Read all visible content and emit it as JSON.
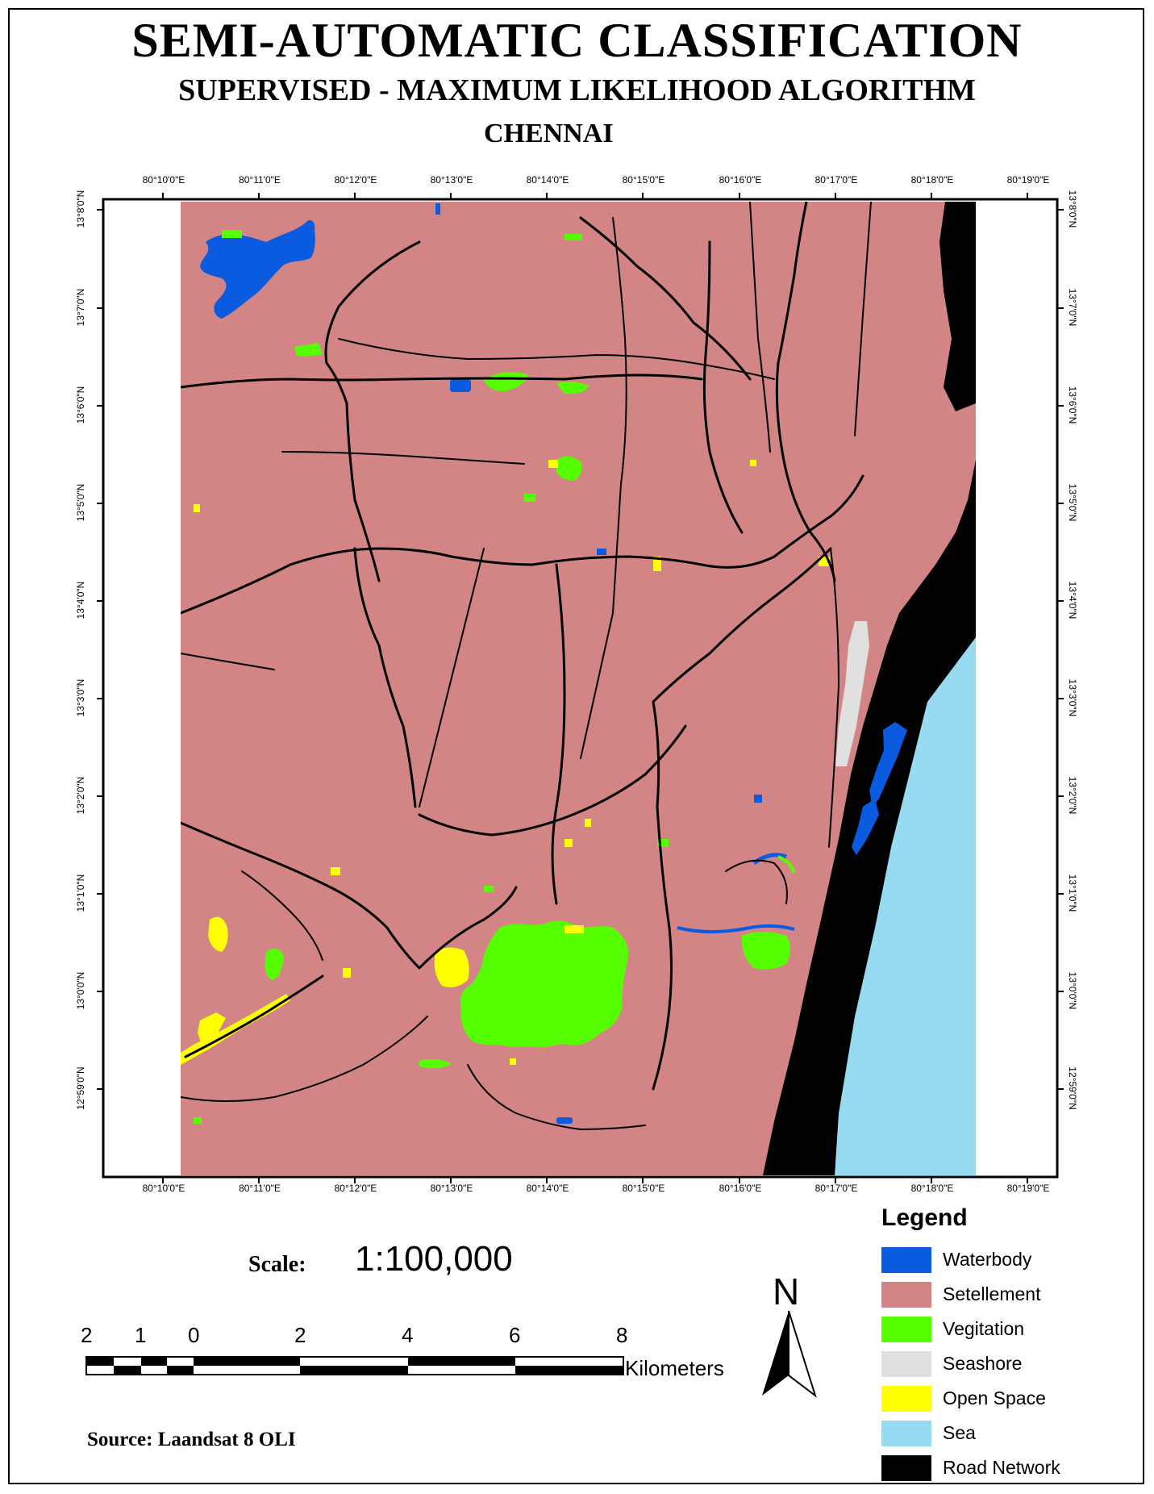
{
  "title": "SEMI-AUTOMATIC CLASSIFICATION",
  "subtitle": "SUPERVISED - MAXIMUM LIKELIHOOD ALGORITHM",
  "place": "CHENNAI",
  "x_ticks": [
    "80°10'0\"E",
    "80°11'0\"E",
    "80°12'0\"E",
    "80°13'0\"E",
    "80°14'0\"E",
    "80°15'0\"E",
    "80°16'0\"E",
    "80°17'0\"E",
    "80°18'0\"E",
    "80°19'0\"E"
  ],
  "y_ticks": [
    "13°8'0\"N",
    "13°7'0\"N",
    "13°6'0\"N",
    "13°5'0\"N",
    "13°4'0\"N",
    "13°3'0\"N",
    "13°2'0\"N",
    "13°1'0\"N",
    "13°0'0\"N",
    "12°59'0\"N"
  ],
  "scale": {
    "label": "Scale:",
    "value": "1:100,000"
  },
  "scalebar": {
    "numbers": [
      "2",
      "1",
      "0",
      "2",
      "4",
      "6",
      "8"
    ],
    "units": "Kilometers"
  },
  "north_label": "N",
  "source": "Source: Laandsat 8 OLI",
  "legend": {
    "title": "Legend",
    "items": [
      {
        "label": "Waterbody",
        "color": "#0a5be0"
      },
      {
        "label": "Setellement",
        "color": "#d38585"
      },
      {
        "label": "Vegitation",
        "color": "#55ff00"
      },
      {
        "label": "Seashore",
        "color": "#e0e0e0"
      },
      {
        "label": "Open Space",
        "color": "#ffff00"
      },
      {
        "label": "Sea",
        "color": "#97dbf2"
      },
      {
        "label": "Road Network",
        "color": "#000000"
      }
    ]
  }
}
